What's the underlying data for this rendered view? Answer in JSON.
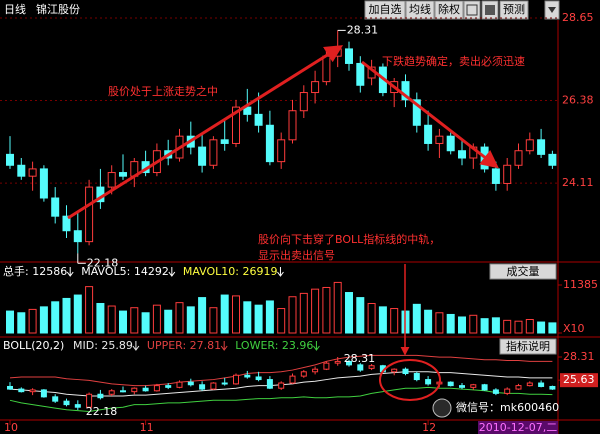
{
  "header": {
    "period": "日线",
    "stock": "锦江股份",
    "buttons": [
      "加自选",
      "均线",
      "除权",
      "预测"
    ]
  },
  "watermark": "微信号：mk600460",
  "chart_data": [
    {
      "type": "candlestick",
      "categories": [
        "10",
        null,
        null,
        null,
        null,
        null,
        null,
        null,
        null,
        null,
        null,
        null,
        "11",
        null,
        null,
        null,
        null,
        null,
        null,
        null,
        null,
        null,
        null,
        null,
        null,
        null,
        null,
        null,
        null,
        null,
        null,
        null,
        null,
        null,
        null,
        null,
        null,
        "12",
        null,
        null,
        null,
        null,
        null,
        null,
        null,
        null,
        null,
        null,
        null
      ],
      "open": [
        24.9,
        24.6,
        24.3,
        24.5,
        23.7,
        23.2,
        22.8,
        22.5,
        24.0,
        24.0,
        24.4,
        24.3,
        24.7,
        24.4,
        25.0,
        24.8,
        25.4,
        25.1,
        24.6,
        25.3,
        25.2,
        26.2,
        26.0,
        25.7,
        24.7,
        25.3,
        26.1,
        26.6,
        26.9,
        27.6,
        27.8,
        27.4,
        27.0,
        27.3,
        26.6,
        26.9,
        26.4,
        25.7,
        25.2,
        25.4,
        25.0,
        24.8,
        25.1,
        24.5,
        24.1,
        24.6,
        25.0,
        25.3,
        24.9
      ],
      "high": [
        25.4,
        24.8,
        24.7,
        24.6,
        24.0,
        23.5,
        23.3,
        24.2,
        24.5,
        24.6,
        24.9,
        24.8,
        25.0,
        25.2,
        25.3,
        25.6,
        25.8,
        25.5,
        25.4,
        25.9,
        26.4,
        26.7,
        26.6,
        26.1,
        25.5,
        26.4,
        26.8,
        27.2,
        27.8,
        28.31,
        28.0,
        27.6,
        27.5,
        27.4,
        27.0,
        27.1,
        26.6,
        26.1,
        25.6,
        25.5,
        25.3,
        25.2,
        25.2,
        24.7,
        24.8,
        25.2,
        25.5,
        25.6,
        25.0
      ],
      "low": [
        24.5,
        24.2,
        23.9,
        23.6,
        23.0,
        22.6,
        22.18,
        22.4,
        23.4,
        23.8,
        24.2,
        24.0,
        24.3,
        24.3,
        24.6,
        24.7,
        24.9,
        24.4,
        24.5,
        25.0,
        25.1,
        25.8,
        25.5,
        24.6,
        24.5,
        25.2,
        25.9,
        26.3,
        26.8,
        27.3,
        27.2,
        26.6,
        26.8,
        26.5,
        26.2,
        26.2,
        25.5,
        25.0,
        24.8,
        24.9,
        24.6,
        24.5,
        24.4,
        23.9,
        23.9,
        24.5,
        24.9,
        24.8,
        24.5
      ],
      "close": [
        24.6,
        24.3,
        24.5,
        23.7,
        23.2,
        22.8,
        22.5,
        24.0,
        23.6,
        24.4,
        24.3,
        24.7,
        24.4,
        25.0,
        24.8,
        25.4,
        25.1,
        24.6,
        25.3,
        25.2,
        26.2,
        26.0,
        25.7,
        24.7,
        25.3,
        26.1,
        26.6,
        26.9,
        27.6,
        27.8,
        27.4,
        26.8,
        27.3,
        26.6,
        26.9,
        26.4,
        25.7,
        25.2,
        25.4,
        25.0,
        24.8,
        25.1,
        24.5,
        24.1,
        24.6,
        25.0,
        25.3,
        24.9,
        24.6
      ],
      "up_color": "#ff3c3c",
      "down_color": "#54fcfc",
      "ylim": [
        21.94,
        28.65
      ],
      "yticks": [
        28.65,
        26.38,
        24.11
      ],
      "grid": true,
      "annotations": [
        "股价处于上涨走势之中",
        "下跌趋势确定，卖出必须迅速",
        "股价向下击穿了BOLL指标线的中轨，",
        "显示出卖出信号",
        "28.31",
        "22.18"
      ]
    },
    {
      "type": "bar",
      "title": "成交量",
      "stats": [
        "总手: 12586",
        "MAVOL5: 14292",
        "MAVOL10: 26919"
      ],
      "values": [
        5200,
        4800,
        5600,
        6200,
        7400,
        8200,
        9000,
        11000,
        7000,
        6400,
        5200,
        6000,
        4800,
        6600,
        5400,
        7200,
        6200,
        8400,
        6000,
        9000,
        8800,
        7400,
        6600,
        7600,
        5800,
        8600,
        9400,
        10400,
        10800,
        12000,
        9600,
        8400,
        7000,
        6200,
        5800,
        5200,
        6800,
        5400,
        4800,
        4400,
        3800,
        4200,
        3400,
        3600,
        3000,
        2800,
        3200,
        2600,
        2400
      ],
      "ylim": [
        0,
        14470
      ],
      "yticks": [
        11385,
        {
          "value": 0,
          "label": "X10"
        }
      ]
    },
    {
      "type": "boll",
      "title": "BOLL(20,2)",
      "button": "指标说明",
      "cursor_label": "2010-12-07,二",
      "series": [
        {
          "name": "MID: 25.89",
          "color": "#e8e8e8",
          "values": [
            24.6,
            24.5,
            24.4,
            24.3,
            24.2,
            24.0,
            23.9,
            23.8,
            23.8,
            23.8,
            23.8,
            23.9,
            23.9,
            24.0,
            24.1,
            24.2,
            24.3,
            24.4,
            24.5,
            24.6,
            24.7,
            24.9,
            25.0,
            25.0,
            25.1,
            25.2,
            25.4,
            25.5,
            25.7,
            25.9,
            26.0,
            26.1,
            26.3,
            26.4,
            26.5,
            26.6,
            26.6,
            26.6,
            26.5,
            26.5,
            26.4,
            26.3,
            26.2,
            26.1,
            26.0,
            26.0,
            25.9,
            25.9,
            25.89
          ]
        },
        {
          "name": "UPPER: 27.81",
          "color": "#e04040",
          "values": [
            25.9,
            26.0,
            26.0,
            26.0,
            26.0,
            25.8,
            25.7,
            25.6,
            25.4,
            25.2,
            25.1,
            25.0,
            25.0,
            25.1,
            25.2,
            25.4,
            25.5,
            25.6,
            25.7,
            25.9,
            26.1,
            26.4,
            26.5,
            26.5,
            26.6,
            26.8,
            27.1,
            27.4,
            27.8,
            28.1,
            28.3,
            28.4,
            28.5,
            28.5,
            28.5,
            28.5,
            28.5,
            28.4,
            28.3,
            28.3,
            28.2,
            28.1,
            28.0,
            28.0,
            27.9,
            27.9,
            27.8,
            27.8,
            27.81
          ]
        },
        {
          "name": "LOWER: 23.96",
          "color": "#40d040",
          "values": [
            23.3,
            23.0,
            22.8,
            22.6,
            22.4,
            22.2,
            22.1,
            22.0,
            22.2,
            22.4,
            22.5,
            22.8,
            22.8,
            22.9,
            23.0,
            23.0,
            23.1,
            23.2,
            23.3,
            23.3,
            23.3,
            23.4,
            23.5,
            23.5,
            23.6,
            23.6,
            23.7,
            23.6,
            23.6,
            23.7,
            23.7,
            23.8,
            24.1,
            24.3,
            24.5,
            24.7,
            24.7,
            24.8,
            24.7,
            24.7,
            24.6,
            24.5,
            24.4,
            24.2,
            24.1,
            24.1,
            24.0,
            24.0,
            23.96
          ]
        }
      ],
      "ylim": [
        21.02,
        28.89
      ],
      "yticks": [
        28.31,
        25.63
      ],
      "annotations": [
        "28.31",
        "22.18"
      ]
    }
  ]
}
